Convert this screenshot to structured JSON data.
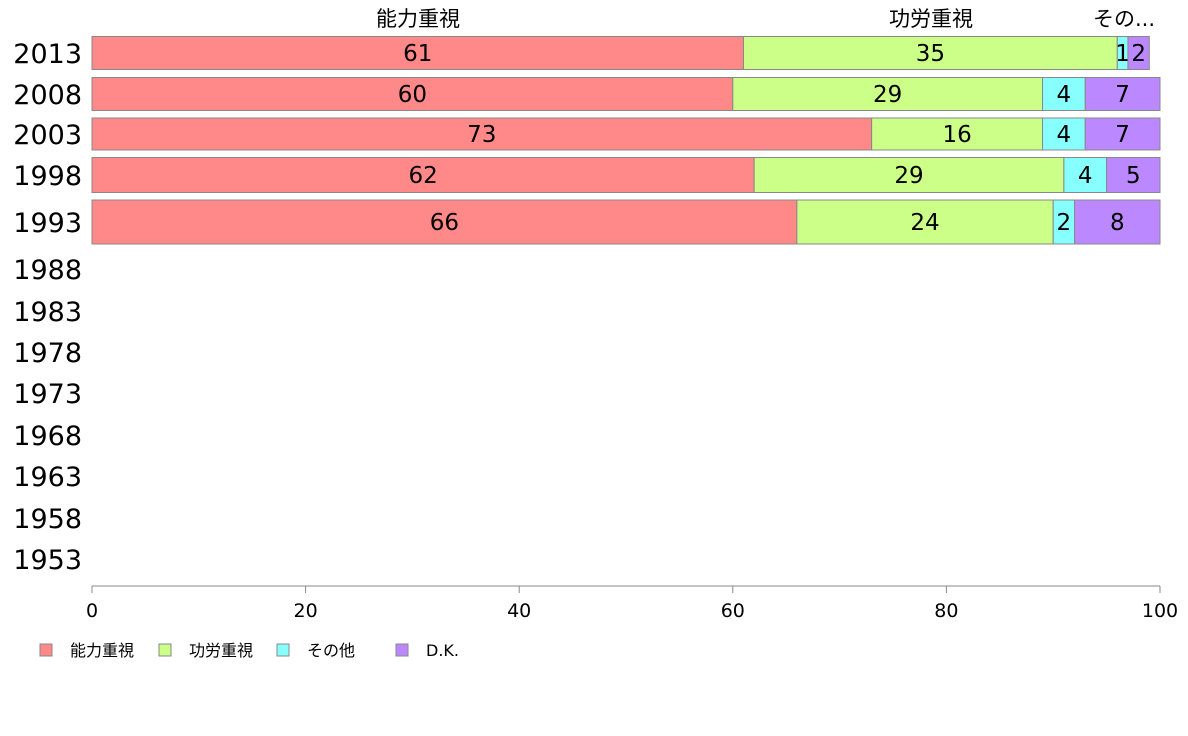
{
  "chart_data": {
    "type": "bar",
    "orientation": "horizontal",
    "stacked": true,
    "categories": [
      "2013",
      "2008",
      "2003",
      "1998",
      "1993",
      "1988",
      "1983",
      "1978",
      "1973",
      "1968",
      "1963",
      "1958",
      "1953"
    ],
    "series": [
      {
        "name": "能力重視",
        "color": "#ff8888",
        "values": [
          61,
          60,
          73,
          62,
          66,
          null,
          null,
          null,
          null,
          null,
          null,
          null,
          null
        ]
      },
      {
        "name": "功労重視",
        "color": "#ccff88",
        "values": [
          35,
          29,
          16,
          29,
          24,
          null,
          null,
          null,
          null,
          null,
          null,
          null,
          null
        ]
      },
      {
        "name": "その他",
        "color": "#88ffff",
        "values": [
          1,
          4,
          4,
          4,
          2,
          null,
          null,
          null,
          null,
          null,
          null,
          null,
          null
        ]
      },
      {
        "name": "D.K.",
        "color": "#bb88ff",
        "values": [
          2,
          7,
          7,
          5,
          8,
          null,
          null,
          null,
          null,
          null,
          null,
          null,
          null
        ]
      }
    ],
    "top_labels": [
      "能力重視",
      "功労重視",
      "その..."
    ],
    "xlim": [
      0,
      100
    ],
    "xticks": [
      0,
      20,
      40,
      60,
      80,
      100
    ],
    "legend_position": "bottom-left",
    "grid": false
  }
}
